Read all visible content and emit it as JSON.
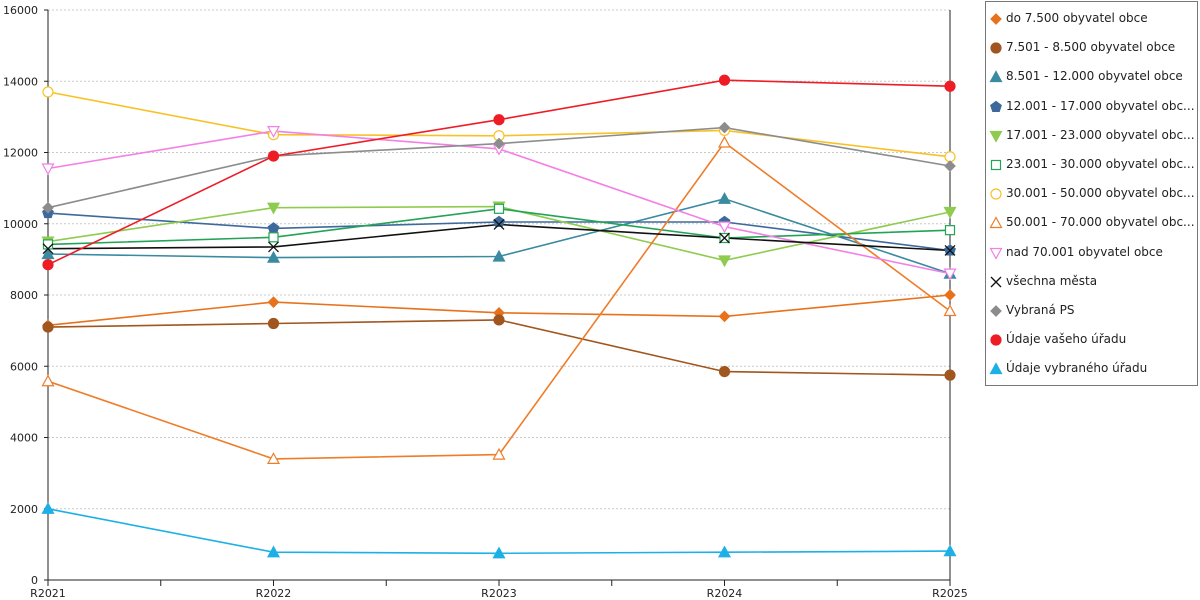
{
  "chart_data": {
    "type": "line",
    "categories": [
      "R2021",
      "R2022",
      "R2023",
      "R2024",
      "R2025"
    ],
    "ylim": [
      0,
      16000
    ],
    "yticks": [
      0,
      2000,
      4000,
      6000,
      8000,
      10000,
      12000,
      14000,
      16000
    ],
    "grid": "horizontal-dotted",
    "legend_position": "right",
    "series": [
      {
        "name": "do 7.500 obyvatel obce",
        "color": "#E8721C",
        "marker": "diamond",
        "filled": true,
        "values": [
          7150,
          7800,
          7500,
          7400,
          8000
        ]
      },
      {
        "name": "7.501 - 8.500 obyvatel obce",
        "color": "#A0561E",
        "marker": "circle",
        "filled": true,
        "values": [
          7100,
          7200,
          7300,
          5850,
          5750
        ]
      },
      {
        "name": "8.501 - 12.000 obyvatel obce",
        "color": "#3A8AA0",
        "marker": "triangle",
        "filled": true,
        "values": [
          9150,
          9050,
          9080,
          10700,
          8600
        ]
      },
      {
        "name": "12.001 - 17.000 obyvatel obc...",
        "color": "#3D6A9B",
        "marker": "pentagon",
        "filled": true,
        "values": [
          10300,
          9870,
          10050,
          10050,
          9250
        ]
      },
      {
        "name": "17.001 - 23.000 obyvatel obc...",
        "color": "#8FCB4E",
        "marker": "triangle-down",
        "filled": true,
        "values": [
          9500,
          10450,
          10480,
          8970,
          10330
        ]
      },
      {
        "name": "23.001 - 30.000 obyvatel obc...",
        "color": "#22A356",
        "marker": "square",
        "filled": false,
        "values": [
          9420,
          9620,
          10420,
          9600,
          9820
        ]
      },
      {
        "name": "30.001 - 50.000 obyvatel obc...",
        "color": "#F8C226",
        "marker": "circle",
        "filled": false,
        "values": [
          13700,
          12500,
          12470,
          12620,
          11880
        ]
      },
      {
        "name": "50.001 - 70.000 obyvatel obc...",
        "color": "#EE7D2A",
        "marker": "triangle",
        "filled": false,
        "values": [
          5580,
          3400,
          3520,
          12280,
          7550
        ]
      },
      {
        "name": "nad 70.001 obyvatel obce",
        "color": "#F47FE6",
        "marker": "triangle-down",
        "filled": false,
        "values": [
          11550,
          12600,
          12100,
          9920,
          8600
        ]
      },
      {
        "name": "všechna města",
        "color": "#111111",
        "marker": "cross",
        "filled": false,
        "values": [
          9300,
          9350,
          9980,
          9600,
          9250
        ]
      },
      {
        "name": "Vybraná PS",
        "color": "#8C8C8C",
        "marker": "diamond",
        "filled": true,
        "values": [
          10450,
          11900,
          12250,
          12700,
          11620
        ]
      },
      {
        "name": "Údaje vašeho úřadu",
        "color": "#EE1C25",
        "marker": "circle",
        "filled": true,
        "values": [
          8850,
          11900,
          12920,
          14030,
          13860
        ]
      },
      {
        "name": "Údaje vybraného úřadu",
        "color": "#1CB0E6",
        "marker": "triangle",
        "filled": true,
        "values": [
          2000,
          780,
          750,
          780,
          810
        ]
      }
    ]
  }
}
